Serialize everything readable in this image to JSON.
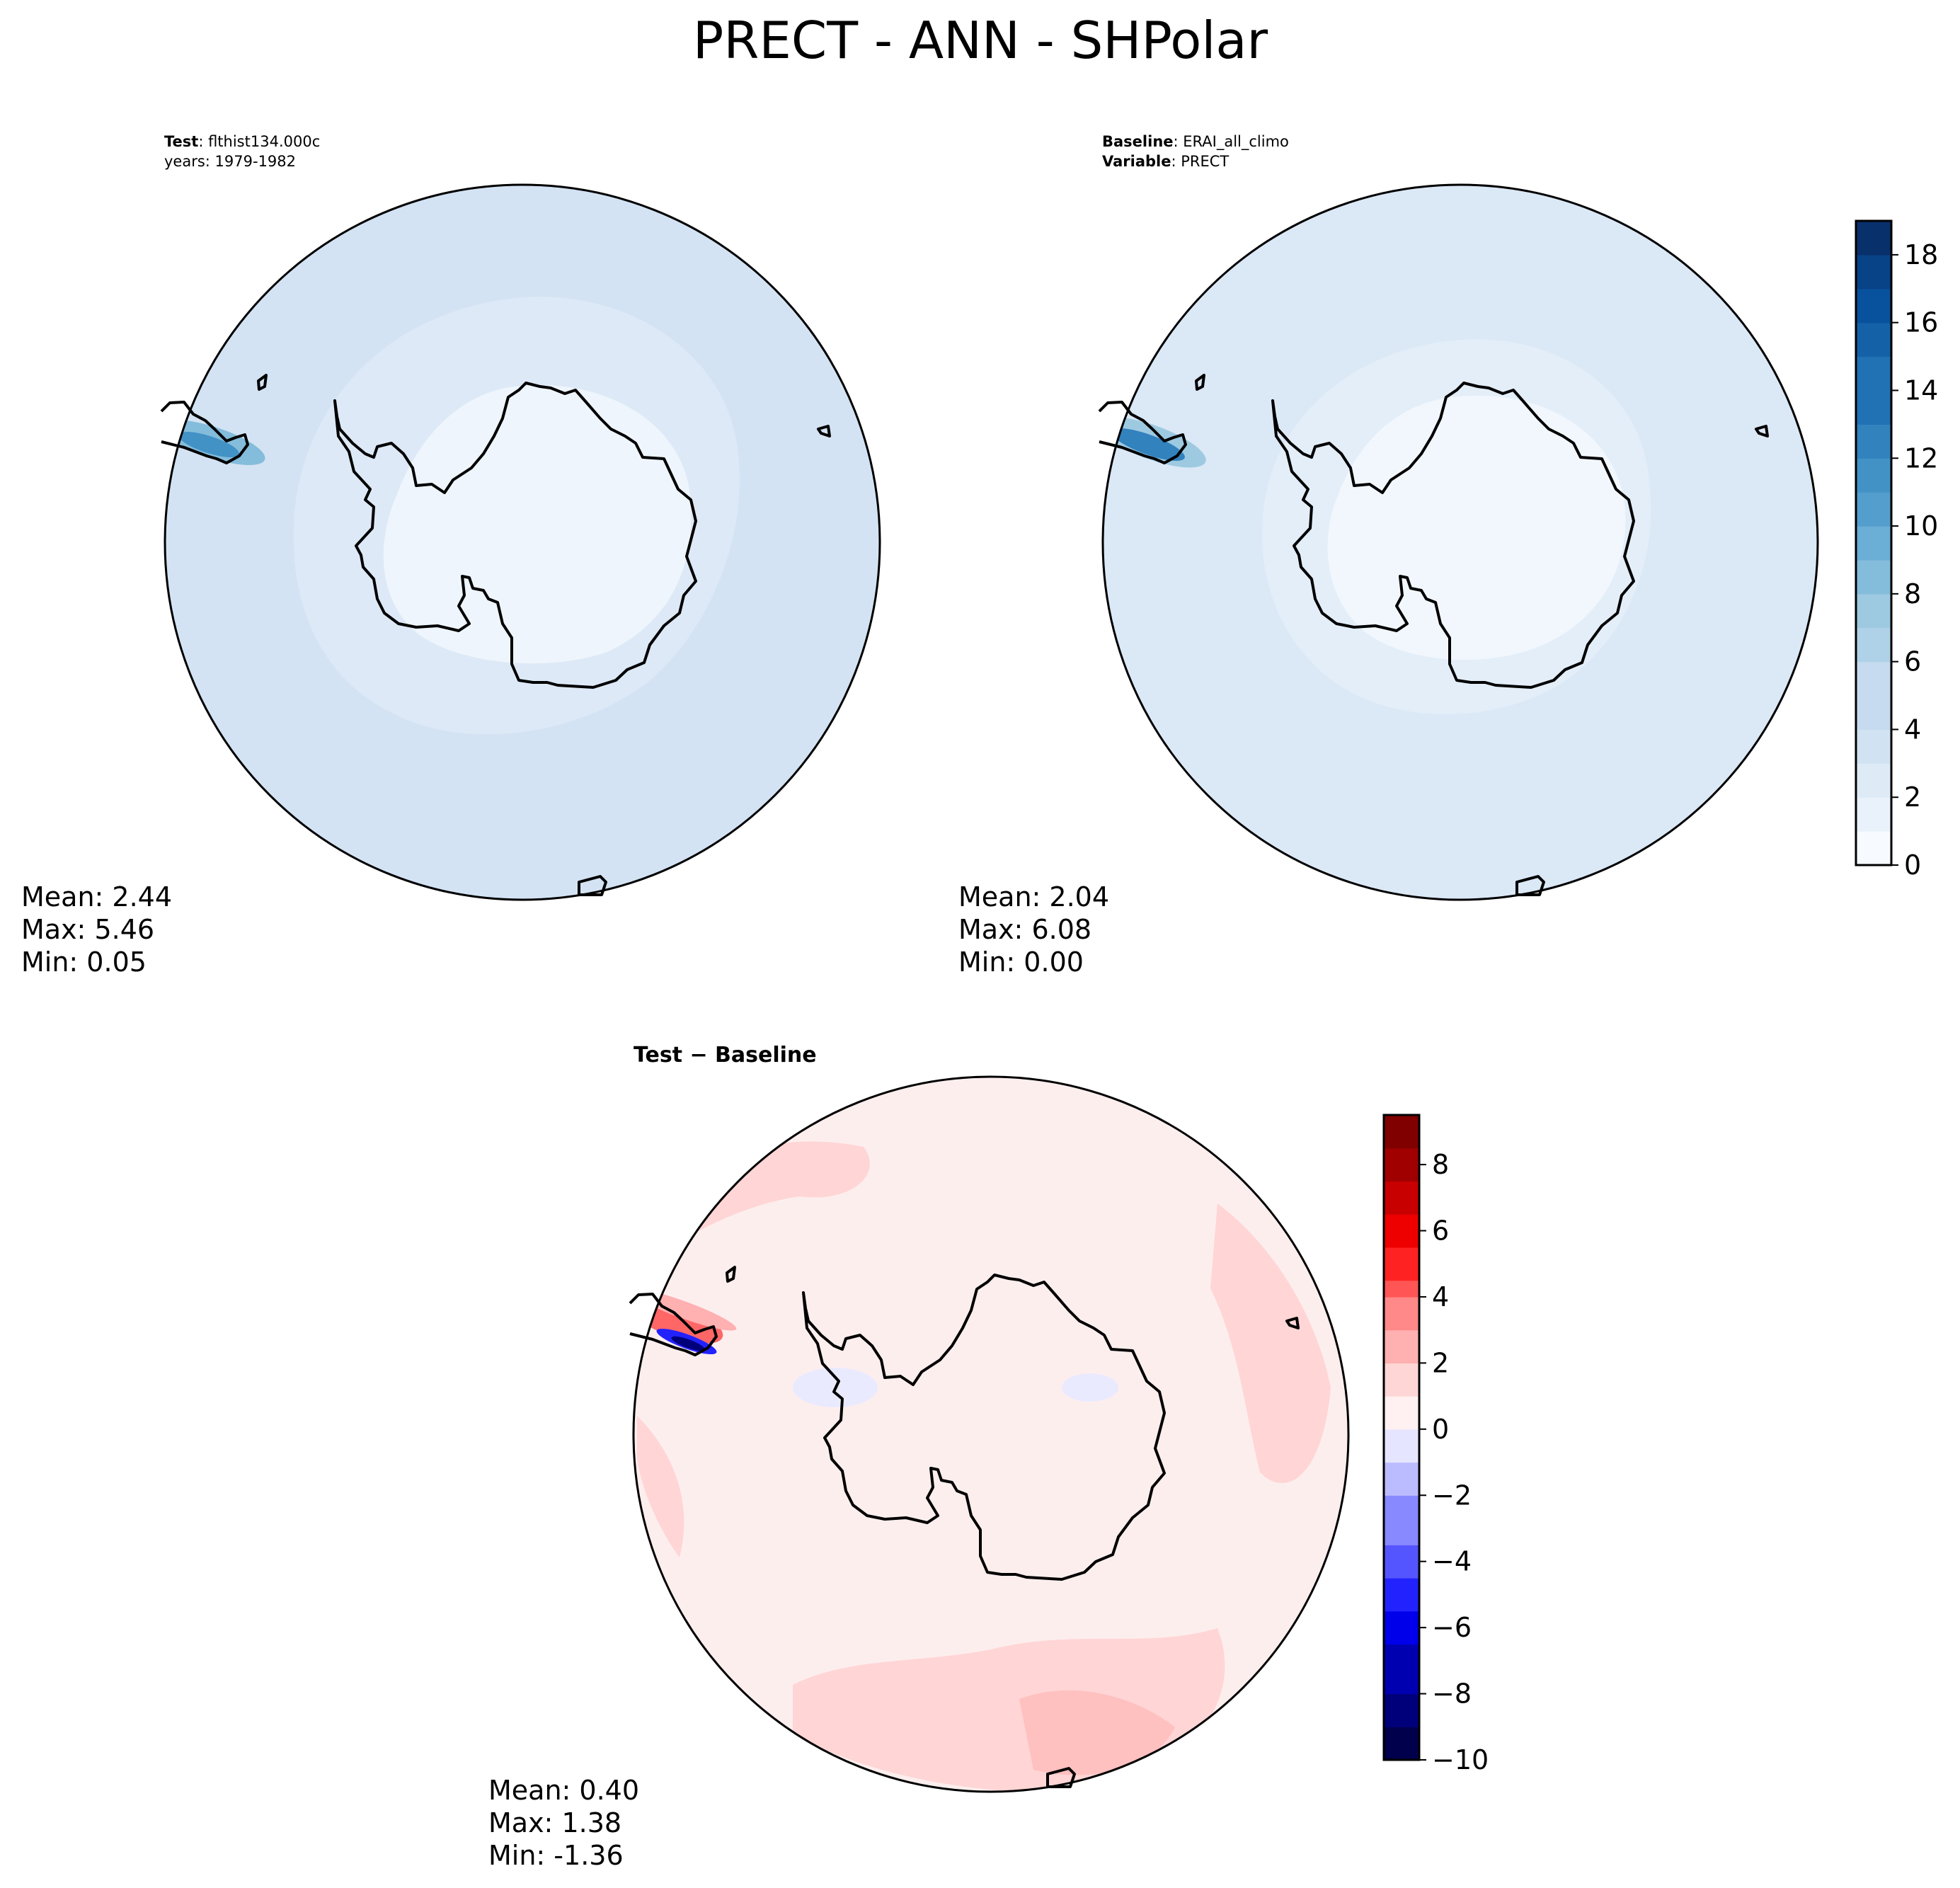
{
  "figure": {
    "title": "PRECT - ANN - SHPolar"
  },
  "chart_data": [
    {
      "type": "heatmap",
      "projection": "south-polar-stereographic",
      "panel": "test",
      "header": {
        "line1_label": "Test",
        "line1_value": ": flthist134.000c",
        "line2": "years: 1979-1982"
      },
      "stats": {
        "mean": "Mean:  2.44",
        "max": "Max:  5.46",
        "min": "Min:  0.05"
      },
      "colormap": "Blues"
    },
    {
      "type": "heatmap",
      "projection": "south-polar-stereographic",
      "panel": "baseline",
      "header": {
        "line1_label": "Baseline",
        "line1_value": ": ERAI_all_climo",
        "line2_label": "Variable",
        "line2_value": ": PRECT"
      },
      "stats": {
        "mean": "Mean:  2.04",
        "max": "Max:  6.08",
        "min": "Min:  0.00"
      },
      "colormap": "Blues",
      "colorbar": {
        "vmin": 0,
        "vmax": 19,
        "levels": [
          0,
          1,
          2,
          3,
          4,
          5,
          6,
          7,
          8,
          9,
          10,
          11,
          12,
          13,
          14,
          15,
          16,
          17,
          18,
          19
        ],
        "tick_labels": [
          "0",
          "2",
          "4",
          "6",
          "8",
          "10",
          "12",
          "14",
          "16",
          "18"
        ],
        "tick_values": [
          0,
          2,
          4,
          6,
          8,
          10,
          12,
          14,
          16,
          18
        ]
      }
    },
    {
      "type": "heatmap",
      "projection": "south-polar-stereographic",
      "panel": "difference",
      "header": {
        "title": "Test − Baseline"
      },
      "stats": {
        "mean": "Mean:  0.40",
        "max": "Max:  1.38",
        "min": "Min: -1.36"
      },
      "colormap": "seismic",
      "colorbar": {
        "vmin": -10,
        "vmax": 9.5,
        "tick_labels": [
          "−10",
          "−8",
          "−6",
          "−4",
          "−2",
          "0",
          "2",
          "4",
          "6",
          "8"
        ],
        "tick_values": [
          -10,
          -8,
          -6,
          -4,
          -2,
          0,
          2,
          4,
          6,
          8
        ]
      }
    }
  ],
  "colors": {
    "blues": [
      "#f7fbff",
      "#e9f2fb",
      "#deebf7",
      "#d1e3f3",
      "#c6dbef",
      "#b0d2e8",
      "#9ecae1",
      "#84bcdb",
      "#6baed6",
      "#539ecd",
      "#4292c6",
      "#3282be",
      "#2171b5",
      "#1461a8",
      "#08519c",
      "#084287",
      "#08306b"
    ],
    "seismic_neg": [
      "#00004c",
      "#00007a",
      "#0000b0",
      "#0000ea",
      "#2222ff",
      "#5555ff",
      "#8888ff",
      "#bbbbff",
      "#e5e5ff"
    ],
    "seismic_pos": [
      "#fff1f1",
      "#ffd6d6",
      "#ffb0b0",
      "#ff8888",
      "#ff5555",
      "#ff2222",
      "#ee0000",
      "#c80000",
      "#a00000",
      "#800000"
    ],
    "test_outer": "#d3e3f3",
    "test_mid": "#dde9f6",
    "test_inner": "#eef5fc",
    "base_outer": "#dbe8f6",
    "base_mid": "#e3eef9",
    "base_inner": "#f2f7fd",
    "diff_base": "#fdeeee",
    "diff_light": "#ffd5d5",
    "diff_med": "#ffc0c0"
  }
}
